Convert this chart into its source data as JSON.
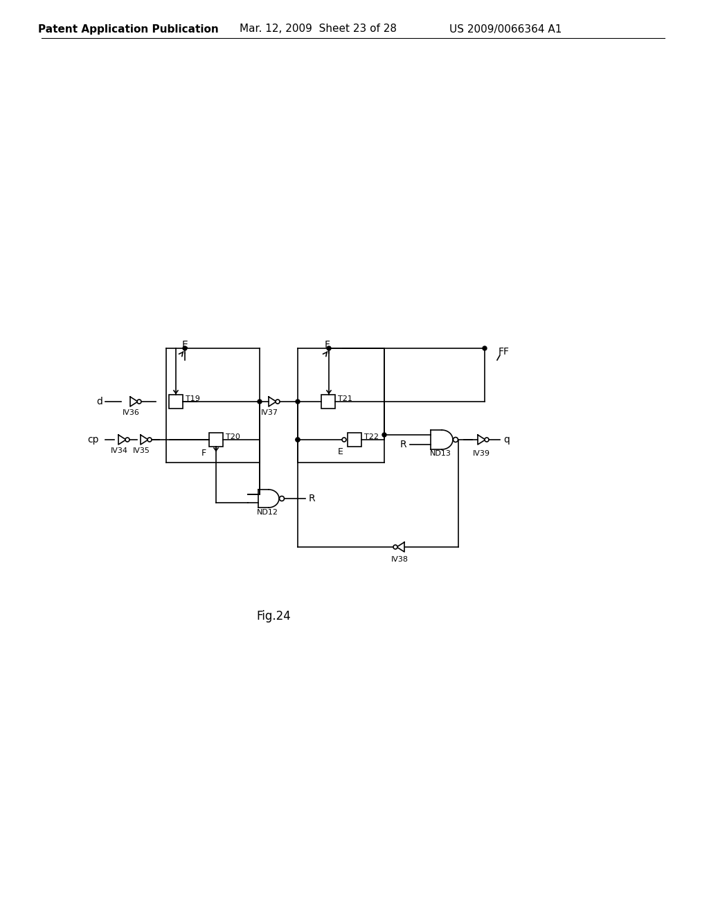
{
  "title": "Fig.24",
  "header_left": "Patent Application Publication",
  "header_mid": "Mar. 12, 2009  Sheet 23 of 28",
  "header_right": "US 2009/0066364 A1",
  "bg_color": "#ffffff",
  "line_color": "#000000",
  "font_size_header": 11,
  "font_size_label": 10,
  "font_size_component": 9
}
